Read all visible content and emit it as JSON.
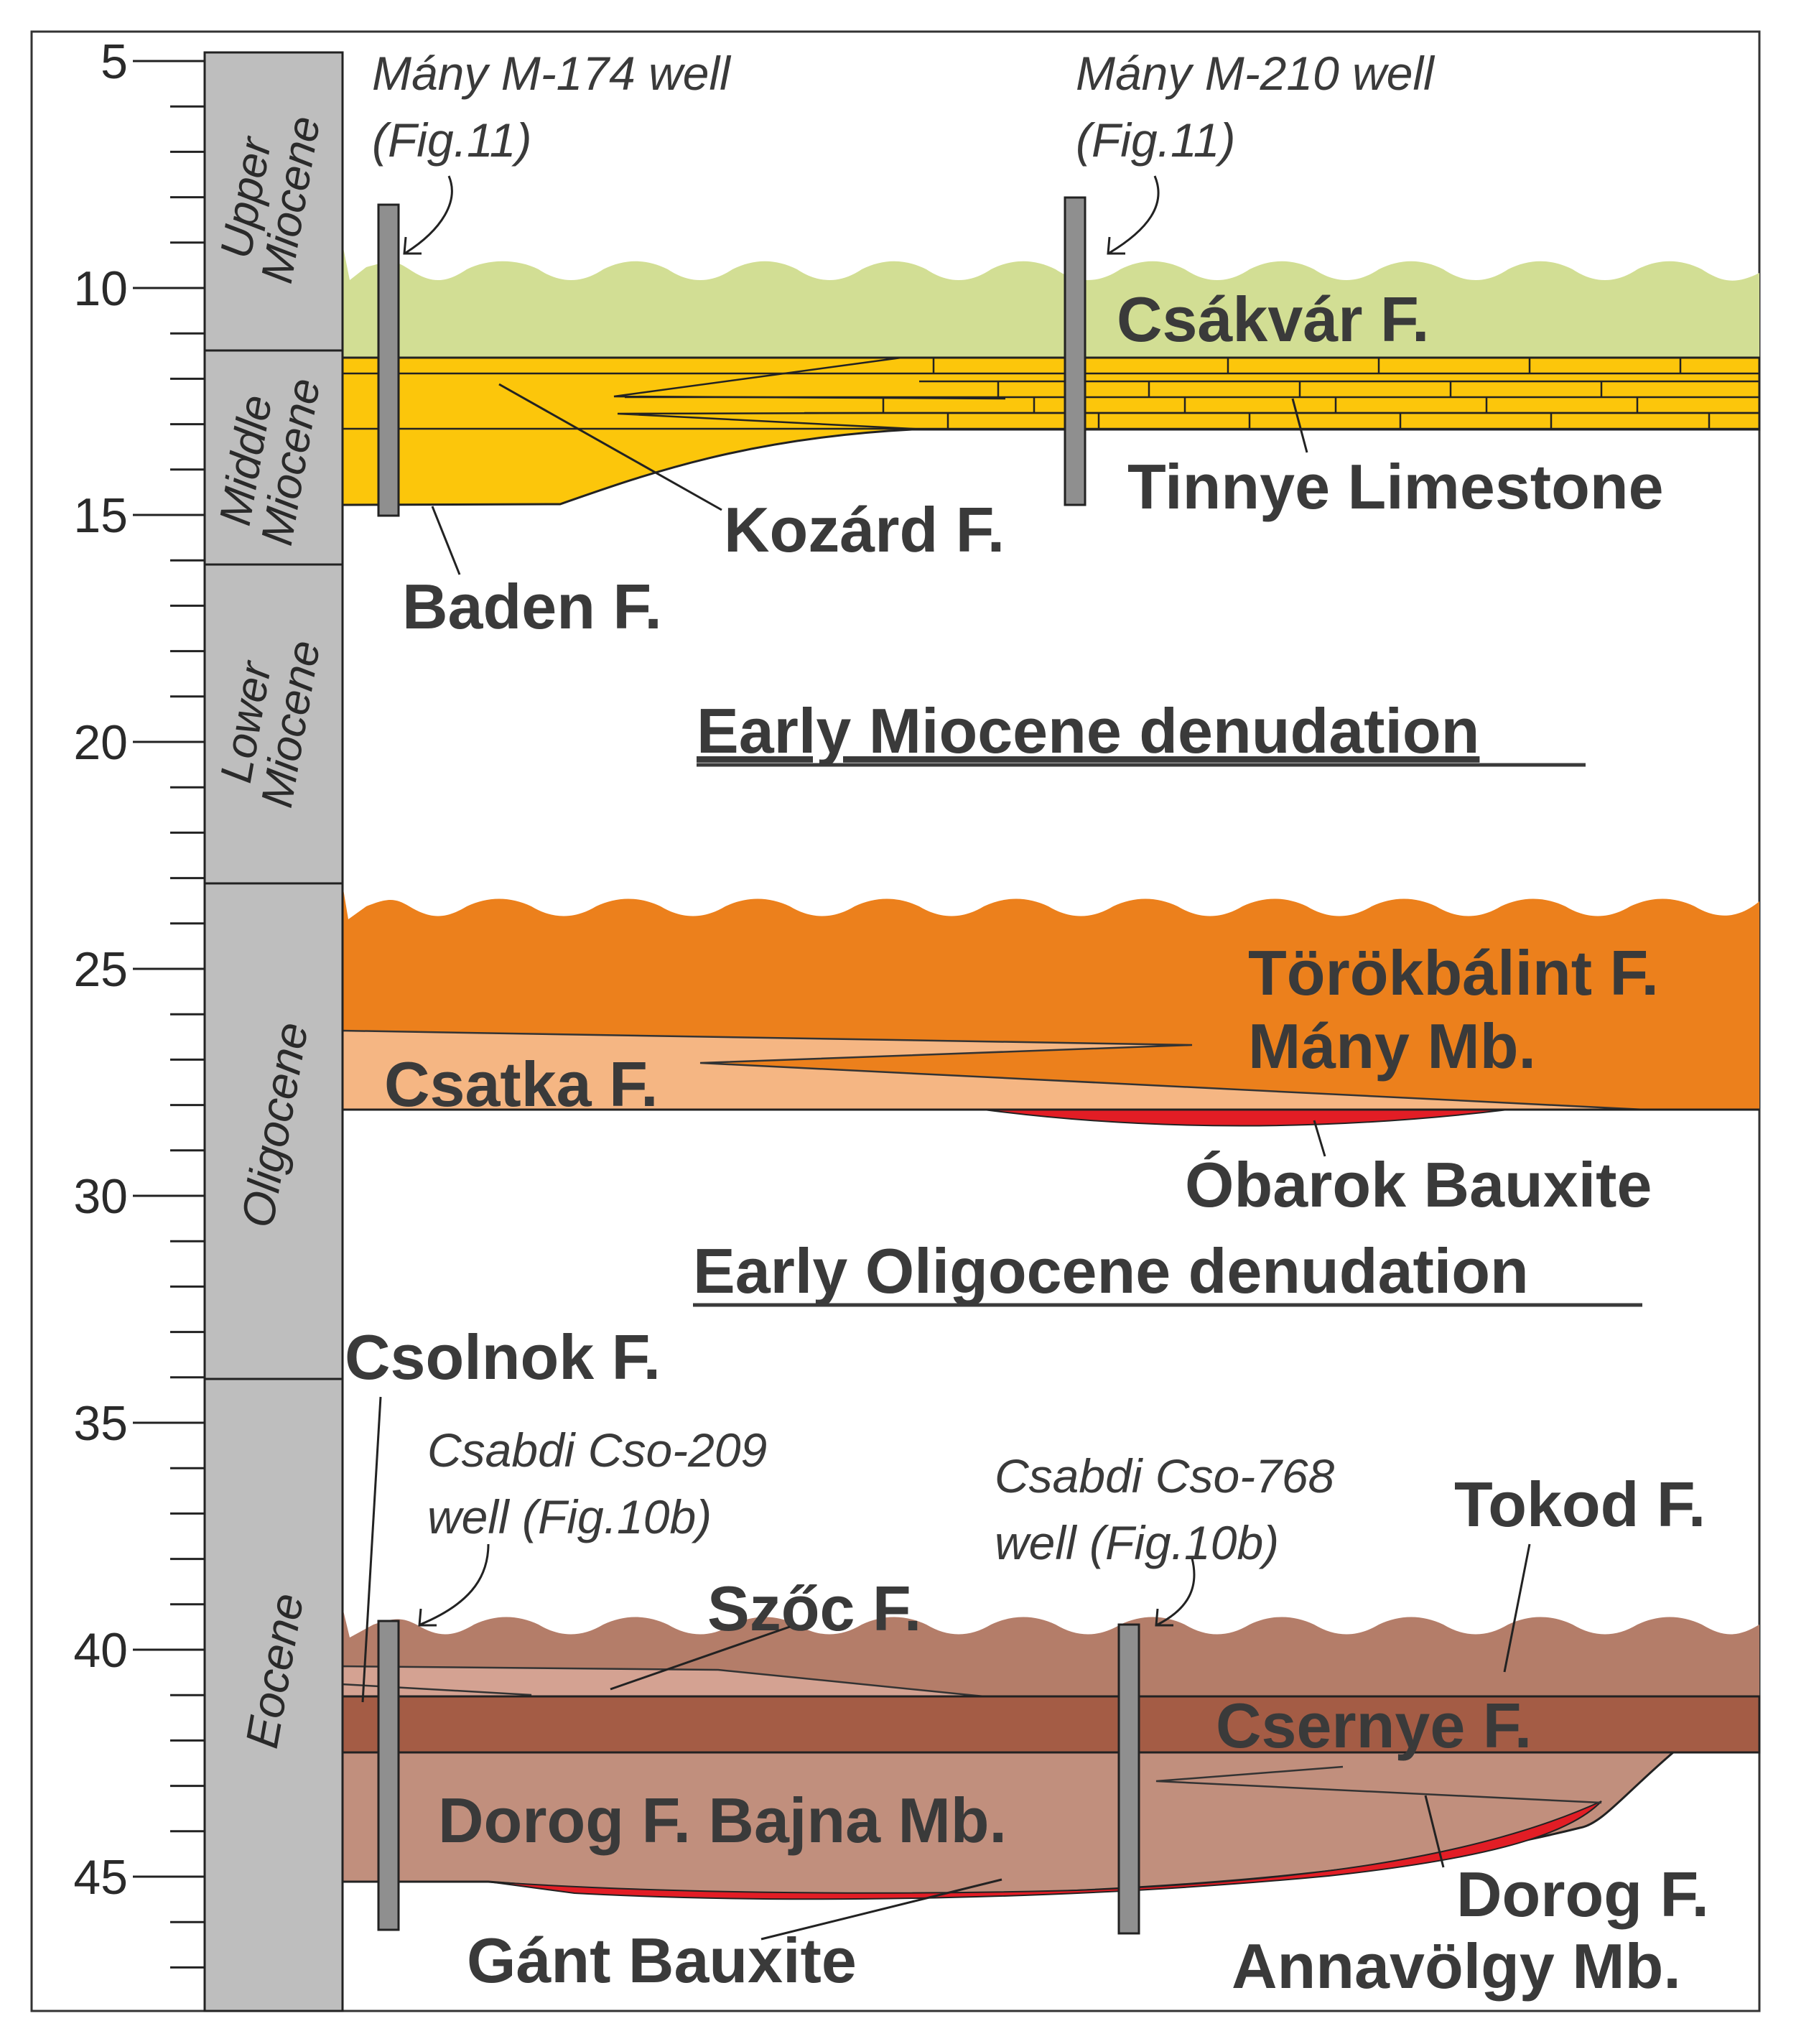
{
  "colors": {
    "csakvar": "#d2de94",
    "yellow": "#fcc60b",
    "orange": "#ec801c",
    "csatka": "#f5b683",
    "bauxite": "#e21d25",
    "tokod": "#b47d69",
    "szoc": "#d4a292",
    "csernye": "#a45c45",
    "dorog": "#c18f7d",
    "column": "#bebebe",
    "well": "#8f8f8f"
  },
  "axis": {
    "ticks": [
      "5",
      "10",
      "15",
      "20",
      "25",
      "30",
      "35",
      "40",
      "45"
    ]
  },
  "epochs": [
    {
      "id": "upper-miocene",
      "lines": [
        "Upper",
        "Miocene"
      ]
    },
    {
      "id": "middle-miocene",
      "lines": [
        "Middle",
        "Miocene"
      ]
    },
    {
      "id": "lower-miocene",
      "lines": [
        "Lower",
        "Miocene"
      ]
    },
    {
      "id": "oligocene",
      "lines": [
        "Oligocene"
      ]
    },
    {
      "id": "eocene",
      "lines": [
        "Eocene"
      ]
    }
  ],
  "wells": {
    "m174": [
      "Mány M-174 well",
      "(Fig.11)"
    ],
    "m210": [
      "Mány M-210 well",
      "(Fig.11)"
    ],
    "cso209": [
      "Csabdi Cso-209",
      "well (Fig.10b)"
    ],
    "cso768": [
      "Csabdi Cso-768",
      "well (Fig.10b)"
    ]
  },
  "labels": {
    "csakvar": "Csákvár F.",
    "tinnye": "Tinnye Limestone",
    "kozard": "Kozárd F.",
    "baden": "Baden F.",
    "early_miocene": "Early Miocene denudation",
    "torokbalint": "Törökbálint F.",
    "many_mb": "Mány Mb.",
    "csatka": "Csatka F.",
    "obarok": "Óbarok Bauxite",
    "early_oligocene": "Early Oligocene denudation",
    "csolnok": "Csolnok F.",
    "tokod": "Tokod F.",
    "szoc": "Szőc F.",
    "csernye": "Csernye F.",
    "dorog_bajna": "Dorog F. Bajna Mb.",
    "dorog": "Dorog F.",
    "annavolgy": "Annavölgy Mb.",
    "gant": "Gánt Bauxite"
  }
}
